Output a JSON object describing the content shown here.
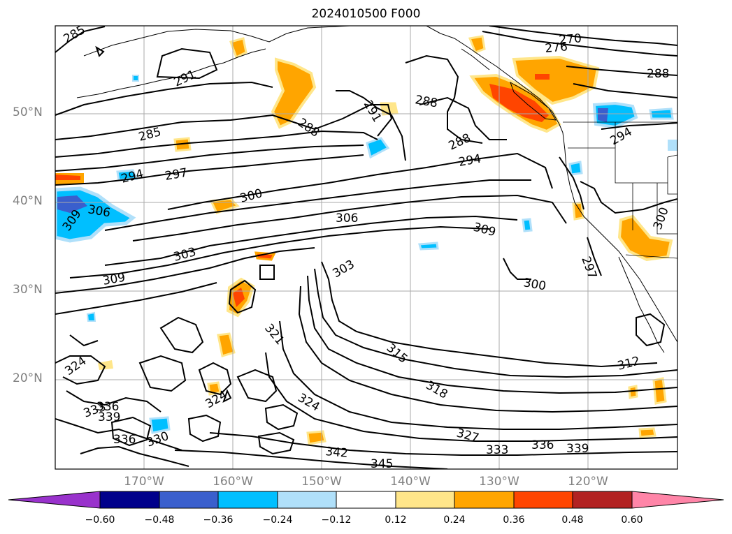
{
  "title": "2024010500 F000",
  "latitude_labels": [
    "50°N",
    "40°N",
    "30°N",
    "20°N"
  ],
  "longitude_labels": [
    "170°W",
    "160°W",
    "150°W",
    "140°W",
    "130°W",
    "120°W"
  ],
  "contour_labels": [
    "285",
    "291",
    "285",
    "288",
    "291",
    "288",
    "288",
    "294",
    "270",
    "276",
    "288",
    "294",
    "297",
    "300",
    "306",
    "309",
    "306",
    "309",
    "303",
    "309",
    "303",
    "300",
    "321",
    "315",
    "318",
    "312",
    "324",
    "324",
    "324",
    "333",
    "336",
    "339",
    "336",
    "330",
    "327",
    "333",
    "336",
    "339",
    "342",
    "345",
    "294",
    "300",
    "297"
  ],
  "colorbar": {
    "ticks": [
      "−0.60",
      "−0.48",
      "−0.36",
      "−0.24",
      "−0.12",
      "0.12",
      "0.24",
      "0.36",
      "0.48",
      "0.60"
    ],
    "colors": [
      "#9932cc",
      "#00008b",
      "#3a5fcd",
      "#00bfff",
      "#b0e0fa",
      "#ffffff",
      "#ffe68a",
      "#ffa500",
      "#ff4500",
      "#b22222",
      "#ff85a8"
    ]
  }
}
